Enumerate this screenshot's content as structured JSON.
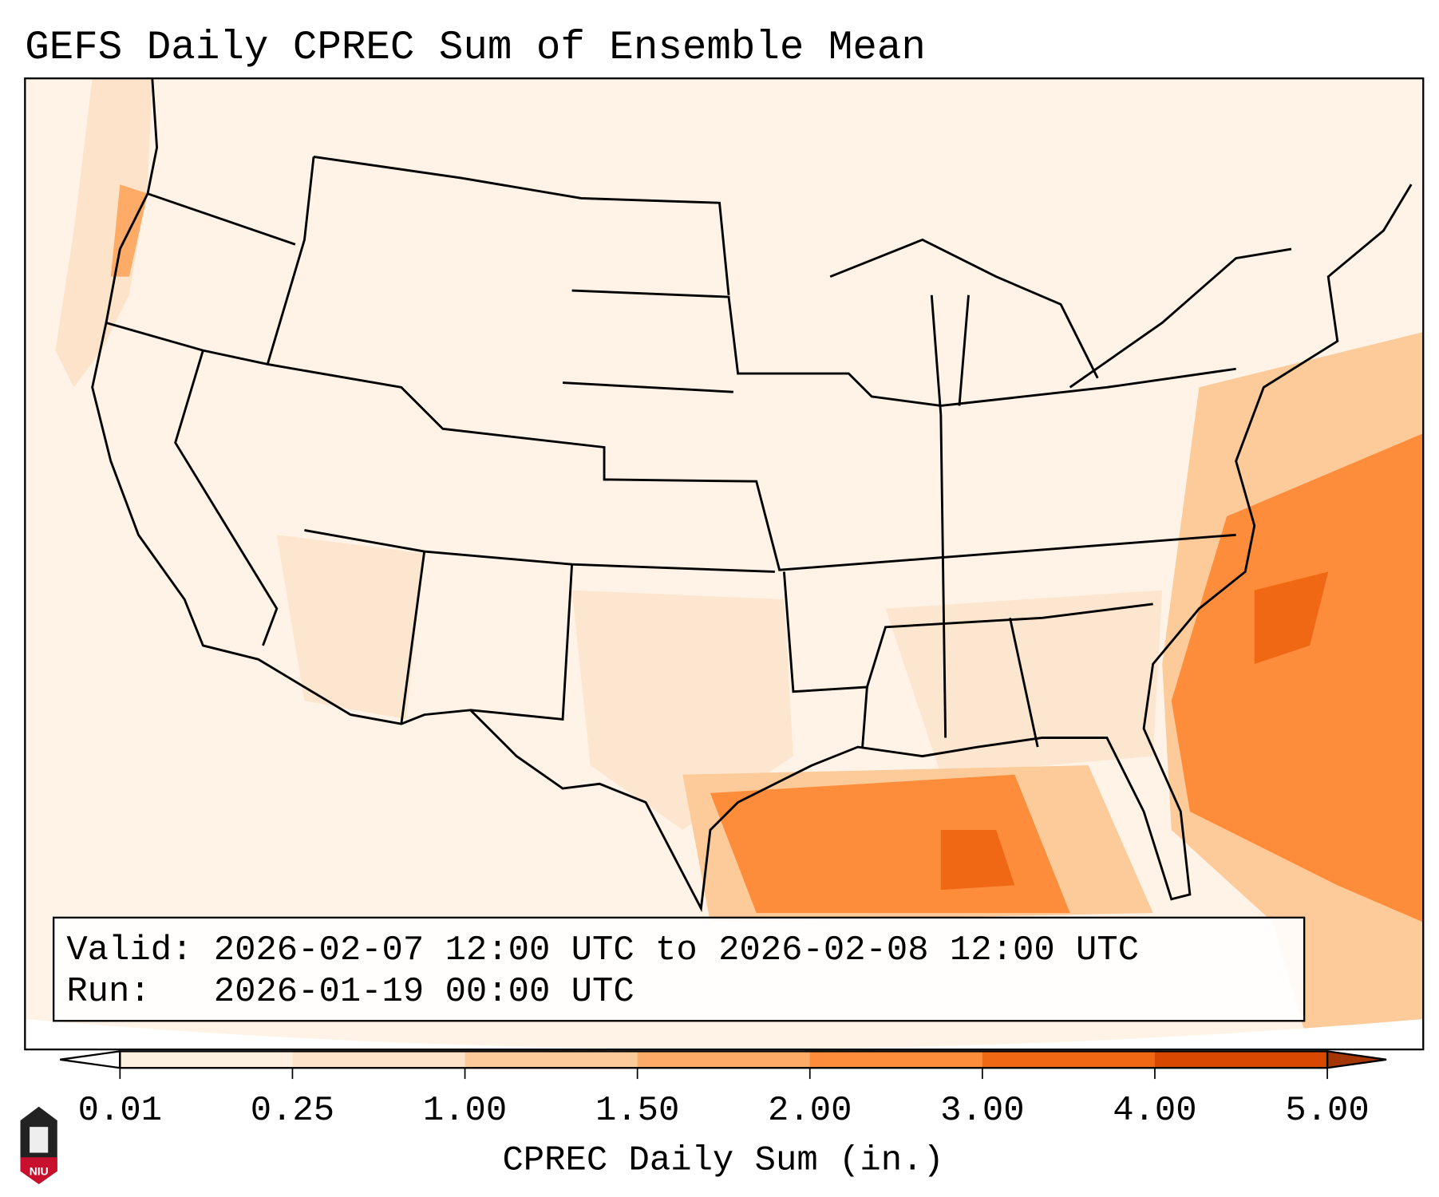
{
  "chart_data": {
    "type": "heatmap",
    "title": "GEFS Daily CPREC Sum of Ensemble Mean",
    "map_region": "Contiguous United States",
    "info": {
      "valid_line": "Valid: 2026-02-07 12:00 UTC to 2026-02-08 12:00 UTC",
      "run_line": "Run:   2026-01-19 00:00 UTC"
    },
    "colorbar": {
      "label": "CPREC Daily Sum (in.)",
      "levels": [
        0.01,
        0.25,
        1.0,
        1.5,
        2.0,
        3.0,
        4.0,
        5.0
      ],
      "tick_labels": [
        "0.01",
        "0.25",
        "1.00",
        "1.50",
        "2.00",
        "3.00",
        "4.00",
        "5.00"
      ],
      "colors": [
        "#fef0e1",
        "#fde3c9",
        "#fdca9a",
        "#fdab66",
        "#fd8c3b",
        "#f06813",
        "#d84801"
      ],
      "under_color": "#ffffff",
      "over_color": "#a33603",
      "extend": "both"
    },
    "regions": [
      {
        "name": "Pacific Northwest coast",
        "value_range": [
          0.25,
          1.5
        ]
      },
      {
        "name": "Western Gulf of Mexico / Texas coast",
        "value_range": [
          1.5,
          2.0
        ]
      },
      {
        "name": "Central Gulf of Mexico",
        "value_range": [
          2.0,
          3.0
        ]
      },
      {
        "name": "Atlantic off Carolinas",
        "value_range": [
          2.0,
          3.0
        ]
      },
      {
        "name": "Interior CONUS",
        "value_range": [
          0.01,
          0.25
        ]
      }
    ]
  },
  "logo": {
    "text": "NIU"
  }
}
